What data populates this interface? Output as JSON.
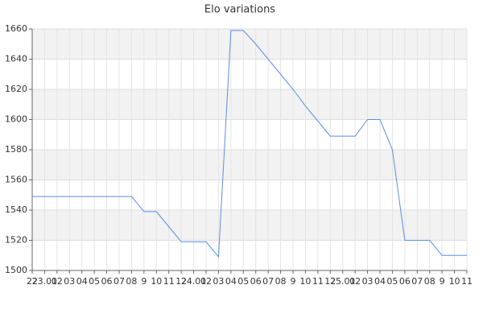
{
  "chart_data": {
    "type": "line",
    "title": "Elo variations",
    "categories": [
      "22",
      "23.01",
      "02",
      "03",
      "04",
      "05",
      "06",
      "07",
      "08",
      "9",
      "10",
      "11",
      "12",
      "24.01",
      "02",
      "03",
      "04",
      "05",
      "06",
      "07",
      "08",
      "9",
      "10",
      "11",
      "12",
      "25.01",
      "02",
      "03",
      "04",
      "05",
      "06",
      "07",
      "08",
      "9",
      "10",
      "11"
    ],
    "series": [
      {
        "color": "#5b8ee6",
        "values": [
          1549,
          1549,
          1549,
          1549,
          1549,
          1549,
          1549,
          1549,
          1549,
          1539,
          1539,
          1529,
          1519,
          1519,
          1519,
          1509,
          1659,
          1659,
          1650,
          1640,
          1630,
          1620,
          1609,
          1599,
          1589,
          1589,
          1589,
          1600,
          1600,
          1580,
          1520,
          1520,
          1520,
          1510,
          1510,
          1510
        ]
      }
    ],
    "ylim": [
      1500,
      1660
    ],
    "yticks": [
      1500,
      1520,
      1540,
      1560,
      1580,
      1600,
      1620,
      1640,
      1660
    ],
    "grid": true
  }
}
